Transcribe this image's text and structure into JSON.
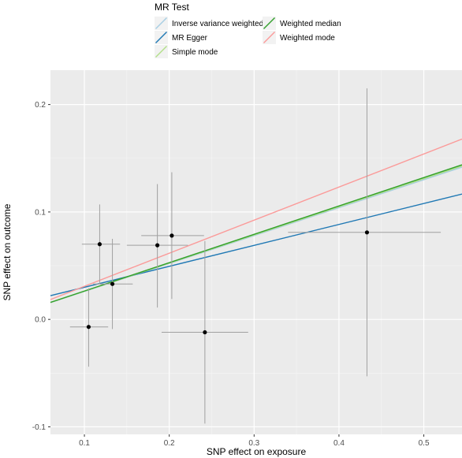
{
  "chart_data": {
    "type": "scatter",
    "xlabel": "SNP effect on exposure",
    "ylabel": "SNP effect on outcome",
    "xlim": [
      0.06,
      0.545
    ],
    "ylim": [
      -0.107,
      0.232
    ],
    "x_ticks": [
      0.1,
      0.2,
      0.3,
      0.4,
      0.5
    ],
    "x_tick_labels": [
      "0.1",
      "0.2",
      "0.3",
      "0.4",
      "0.5"
    ],
    "y_ticks": [
      -0.1,
      0.0,
      0.1,
      0.2
    ],
    "y_tick_labels": [
      "-0.1",
      "0.0",
      "0.1",
      "0.2"
    ],
    "grid": true,
    "legend_position": "top",
    "legend_title": "MR Test",
    "points": [
      {
        "x": 0.105,
        "y": -0.007,
        "x_lo": 0.083,
        "x_hi": 0.128,
        "y_lo": -0.044,
        "y_hi": 0.029
      },
      {
        "x": 0.118,
        "y": 0.07,
        "x_lo": 0.097,
        "x_hi": 0.142,
        "y_lo": 0.033,
        "y_hi": 0.107
      },
      {
        "x": 0.133,
        "y": 0.033,
        "x_lo": 0.11,
        "x_hi": 0.157,
        "y_lo": -0.009,
        "y_hi": 0.075
      },
      {
        "x": 0.186,
        "y": 0.069,
        "x_lo": 0.15,
        "x_hi": 0.222,
        "y_lo": 0.011,
        "y_hi": 0.126
      },
      {
        "x": 0.203,
        "y": 0.078,
        "x_lo": 0.167,
        "x_hi": 0.241,
        "y_lo": 0.019,
        "y_hi": 0.137
      },
      {
        "x": 0.242,
        "y": -0.012,
        "x_lo": 0.191,
        "x_hi": 0.293,
        "y_lo": -0.097,
        "y_hi": 0.073
      },
      {
        "x": 0.433,
        "y": 0.081,
        "x_lo": 0.34,
        "x_hi": 0.52,
        "y_lo": -0.053,
        "y_hi": 0.215
      }
    ],
    "series": [
      {
        "name": "Inverse variance weighted",
        "color": "#a6cee3",
        "intercept": 0.0,
        "slope": 0.26
      },
      {
        "name": "MR Egger",
        "color": "#1f78b4",
        "intercept": 0.0104,
        "slope": 0.195
      },
      {
        "name": "Simple mode",
        "color": "#b2df8a",
        "intercept": 0.0,
        "slope": 0.262
      },
      {
        "name": "Weighted median",
        "color": "#33a02c",
        "intercept": 0.0,
        "slope": 0.264
      },
      {
        "name": "Weighted mode",
        "color": "#fb9a99",
        "intercept": 0.0,
        "slope": 0.308
      }
    ],
    "legend_columns": [
      [
        "Inverse variance weighted",
        "MR Egger",
        "Simple mode"
      ],
      [
        "Weighted median",
        "Weighted mode"
      ]
    ]
  }
}
